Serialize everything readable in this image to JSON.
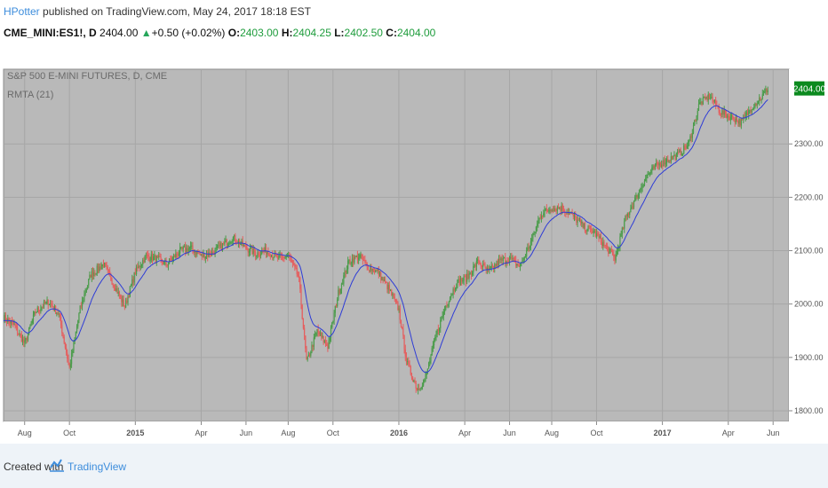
{
  "header": {
    "author": "HPotter",
    "published": " published on TradingView.com, May 24, 2017 18:18 EST",
    "symbol": "CME_MINI:ES1!, D",
    "last": "2404.00",
    "change": "+0.50 (+0.02%)",
    "o_label": "O:",
    "o": "2403.00",
    "h_label": "H:",
    "h": "2404.25",
    "l_label": "L:",
    "l": "2402.50",
    "c_label": "C:",
    "c": "2404.00"
  },
  "colors": {
    "background": "#b9b9b9",
    "grid": "#a6a6a6",
    "up": "#4b9c4b",
    "down": "#e55e5e",
    "ma": "#2e3cd6",
    "price_badge": "#0b8a1e"
  },
  "chart_data": {
    "type": "line",
    "title": "S&P 500 E-MINI FUTURES, D, CME",
    "indicator": "RMTA (21)",
    "yticks": [
      1800,
      1900,
      2000,
      2100,
      2200,
      2300
    ],
    "ytick_labels": [
      "1800.00",
      "1900.00",
      "2000.00",
      "2100.00",
      "2200.00",
      "2300.00"
    ],
    "ylim": [
      1780,
      2440
    ],
    "xticks": [
      "Aug",
      "Oct",
      "2015",
      "Apr",
      "Jun",
      "Aug",
      "Oct",
      "2016",
      "Apr",
      "Jun",
      "Aug",
      "Oct",
      "2017",
      "Apr",
      "Jun"
    ],
    "xtick_pos": [
      2014.58,
      2014.75,
      2015.0,
      2015.25,
      2015.42,
      2015.58,
      2015.75,
      2016.0,
      2016.25,
      2016.42,
      2016.58,
      2016.75,
      2017.0,
      2017.25,
      2017.42
    ],
    "xlim": [
      2014.5,
      2017.48
    ],
    "last_price": "2404.00",
    "last_value": 2404,
    "series": [
      {
        "x": [
          2014.5,
          2014.54,
          2014.58,
          2014.62,
          2014.67,
          2014.71,
          2014.75,
          2014.79,
          2014.83,
          2014.88,
          2014.92,
          2014.96,
          2015.0,
          2015.04,
          2015.08,
          2015.12,
          2015.17,
          2015.21,
          2015.25,
          2015.29,
          2015.33,
          2015.37,
          2015.42,
          2015.46,
          2015.5,
          2015.54,
          2015.58,
          2015.62,
          2015.65,
          2015.69,
          2015.73,
          2015.77,
          2015.81,
          2015.85,
          2015.88,
          2015.92,
          2015.96,
          2016.0,
          2016.03,
          2016.07,
          2016.1,
          2016.14,
          2016.18,
          2016.22,
          2016.26,
          2016.3,
          2016.34,
          2016.38,
          2016.42,
          2016.46,
          2016.5,
          2016.54,
          2016.58,
          2016.62,
          2016.66,
          2016.7,
          2016.74,
          2016.78,
          2016.82,
          2016.86,
          2016.9,
          2016.94,
          2016.98,
          2017.02,
          2017.06,
          2017.1,
          2017.14,
          2017.18,
          2017.22,
          2017.26,
          2017.3,
          2017.34,
          2017.38,
          2017.4
        ],
        "values": [
          1975,
          1960,
          1925,
          1985,
          2005,
          1980,
          1880,
          1990,
          2055,
          2075,
          2035,
          1995,
          2060,
          2090,
          2085,
          2075,
          2100,
          2105,
          2090,
          2095,
          2110,
          2125,
          2105,
          2095,
          2100,
          2085,
          2090,
          2050,
          1890,
          1950,
          1920,
          2020,
          2080,
          2090,
          2070,
          2060,
          2030,
          1990,
          1890,
          1840,
          1860,
          1940,
          2000,
          2040,
          2050,
          2080,
          2060,
          2080,
          2085,
          2070,
          2115,
          2170,
          2180,
          2180,
          2165,
          2145,
          2135,
          2110,
          2085,
          2160,
          2200,
          2240,
          2260,
          2270,
          2280,
          2300,
          2375,
          2390,
          2360,
          2350,
          2340,
          2370,
          2390,
          2404
        ]
      }
    ]
  },
  "footer": {
    "created": "Created with",
    "brand": "TradingView"
  }
}
